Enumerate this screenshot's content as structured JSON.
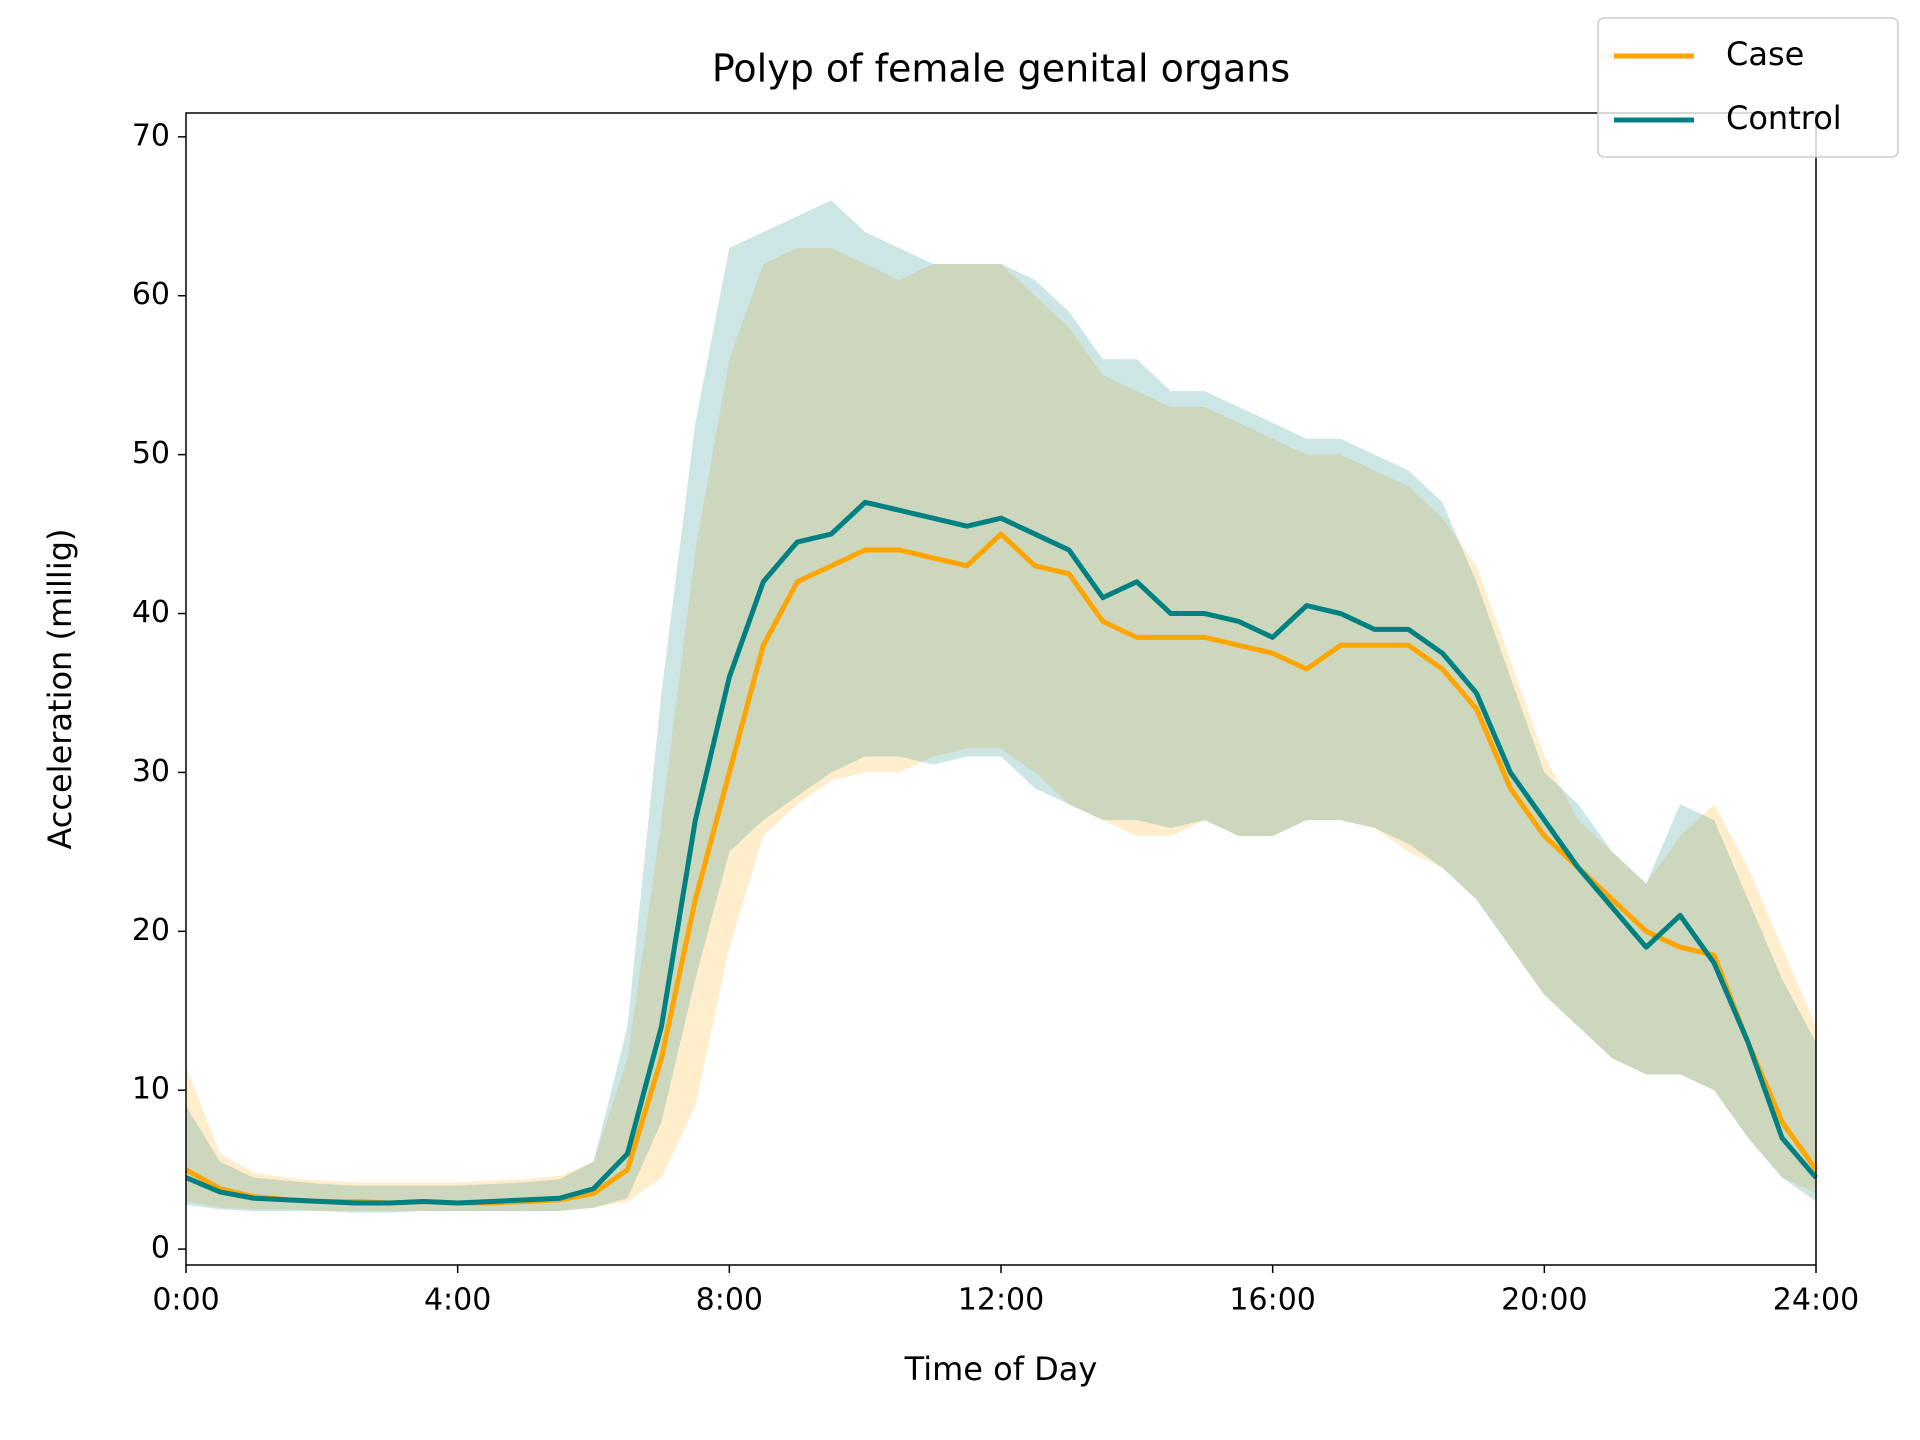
{
  "chart_data": {
    "type": "line",
    "title": "Polyp of female genital organs",
    "xlabel": "Time of Day",
    "ylabel": "Acceleration (millig)",
    "legend": "upper right",
    "xlim": [
      0,
      24
    ],
    "ylim": [
      -1,
      71.5
    ],
    "xticks": [
      {
        "value": 0,
        "label": "0:00"
      },
      {
        "value": 4,
        "label": "4:00"
      },
      {
        "value": 8,
        "label": "8:00"
      },
      {
        "value": 12,
        "label": "12:00"
      },
      {
        "value": 16,
        "label": "16:00"
      },
      {
        "value": 20,
        "label": "20:00"
      },
      {
        "value": 24,
        "label": "24:00"
      }
    ],
    "yticks": [
      0,
      10,
      20,
      30,
      40,
      50,
      60,
      70
    ],
    "x": [
      0,
      0.5,
      1,
      1.5,
      2,
      2.5,
      3,
      3.5,
      4,
      4.5,
      5,
      5.5,
      6,
      6.5,
      7,
      7.5,
      8,
      8.5,
      9,
      9.5,
      10,
      10.5,
      11,
      11.5,
      12,
      12.5,
      13,
      13.5,
      14,
      14.5,
      15,
      15.5,
      16,
      16.5,
      17,
      17.5,
      18,
      18.5,
      19,
      19.5,
      20,
      20.5,
      21,
      21.5,
      22,
      22.5,
      23,
      23.5,
      24
    ],
    "series": [
      {
        "name": "Case",
        "color": "#ffa500",
        "values": [
          5,
          3.8,
          3.3,
          3.1,
          3,
          3,
          2.9,
          3,
          2.9,
          2.9,
          3,
          3.1,
          3.5,
          5,
          12,
          22,
          30,
          38,
          42,
          43,
          44,
          44,
          43.5,
          43,
          45,
          43,
          42.5,
          39.5,
          38.5,
          38.5,
          38.5,
          38,
          37.5,
          36.5,
          38,
          38,
          38,
          36.5,
          34,
          29,
          26,
          24,
          22,
          20,
          19,
          18.5,
          13,
          8,
          5
        ],
        "lower": [
          3,
          2.6,
          2.5,
          2.5,
          2.4,
          2.4,
          2.4,
          2.4,
          2.4,
          2.4,
          2.4,
          2.4,
          2.6,
          3,
          4.5,
          9,
          19,
          26,
          28,
          29.5,
          30,
          30,
          31,
          31.5,
          31.5,
          30,
          28,
          27,
          26,
          26,
          27,
          26,
          26,
          27,
          27,
          26.5,
          25,
          24,
          22,
          19,
          16,
          14,
          12,
          11,
          11,
          10,
          7,
          4.5,
          3.5
        ],
        "upper": [
          11.5,
          6,
          4.8,
          4.5,
          4.3,
          4.2,
          4.2,
          4.2,
          4.2,
          4.3,
          4.4,
          4.6,
          5.5,
          12,
          27,
          44,
          56,
          62,
          63,
          63,
          62,
          61,
          62,
          62,
          62,
          60,
          58,
          55,
          54,
          53,
          53,
          52,
          51,
          50,
          50,
          49,
          48,
          46,
          43,
          37,
          31,
          27,
          25,
          23,
          26,
          28,
          24,
          19,
          14
        ]
      },
      {
        "name": "Control",
        "color": "#008080",
        "values": [
          4.5,
          3.6,
          3.2,
          3.1,
          3,
          2.9,
          2.9,
          3,
          2.9,
          3,
          3.1,
          3.2,
          3.8,
          6,
          14,
          27,
          36,
          42,
          44.5,
          45,
          47,
          46.5,
          46,
          45.5,
          46,
          45,
          44,
          41,
          42,
          40,
          40,
          39.5,
          38.5,
          40.5,
          40,
          39,
          39,
          37.5,
          35,
          30,
          27,
          24,
          21.5,
          19,
          21,
          18,
          13,
          7,
          4.5
        ],
        "lower": [
          2.8,
          2.5,
          2.4,
          2.4,
          2.4,
          2.3,
          2.3,
          2.4,
          2.4,
          2.4,
          2.4,
          2.4,
          2.6,
          3.2,
          8,
          17,
          25,
          27,
          28.5,
          30,
          31,
          31,
          30.5,
          31,
          31,
          29,
          28,
          27,
          27,
          26.5,
          27,
          26,
          26,
          27,
          27,
          26.5,
          25.5,
          24,
          22,
          19,
          16,
          14,
          12,
          11,
          11,
          10,
          7,
          4.5,
          3
        ],
        "upper": [
          9,
          5.5,
          4.5,
          4.3,
          4.1,
          4,
          4,
          4,
          4,
          4.1,
          4.2,
          4.4,
          5.5,
          14,
          35,
          52,
          63,
          64,
          65,
          66,
          64,
          63,
          62,
          62,
          62,
          61,
          59,
          56,
          56,
          54,
          54,
          53,
          52,
          51,
          51,
          50,
          49,
          47,
          42,
          36,
          30,
          28,
          25,
          23,
          28,
          27,
          22,
          17,
          13
        ]
      }
    ]
  }
}
